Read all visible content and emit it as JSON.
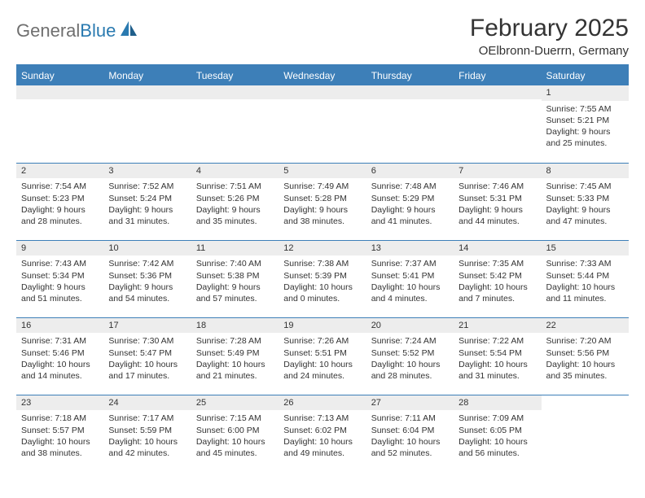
{
  "logo": {
    "text_gray": "General",
    "text_blue": "Blue"
  },
  "title": "February 2025",
  "location": "OElbronn-Duerrn, Germany",
  "header_bg": "#3d7fb8",
  "daynum_bg": "#ededed",
  "weekdays": [
    "Sunday",
    "Monday",
    "Tuesday",
    "Wednesday",
    "Thursday",
    "Friday",
    "Saturday"
  ],
  "weeks": [
    [
      null,
      null,
      null,
      null,
      null,
      null,
      {
        "n": "1",
        "sr": "Sunrise: 7:55 AM",
        "ss": "Sunset: 5:21 PM",
        "dl": "Daylight: 9 hours and 25 minutes."
      }
    ],
    [
      {
        "n": "2",
        "sr": "Sunrise: 7:54 AM",
        "ss": "Sunset: 5:23 PM",
        "dl": "Daylight: 9 hours and 28 minutes."
      },
      {
        "n": "3",
        "sr": "Sunrise: 7:52 AM",
        "ss": "Sunset: 5:24 PM",
        "dl": "Daylight: 9 hours and 31 minutes."
      },
      {
        "n": "4",
        "sr": "Sunrise: 7:51 AM",
        "ss": "Sunset: 5:26 PM",
        "dl": "Daylight: 9 hours and 35 minutes."
      },
      {
        "n": "5",
        "sr": "Sunrise: 7:49 AM",
        "ss": "Sunset: 5:28 PM",
        "dl": "Daylight: 9 hours and 38 minutes."
      },
      {
        "n": "6",
        "sr": "Sunrise: 7:48 AM",
        "ss": "Sunset: 5:29 PM",
        "dl": "Daylight: 9 hours and 41 minutes."
      },
      {
        "n": "7",
        "sr": "Sunrise: 7:46 AM",
        "ss": "Sunset: 5:31 PM",
        "dl": "Daylight: 9 hours and 44 minutes."
      },
      {
        "n": "8",
        "sr": "Sunrise: 7:45 AM",
        "ss": "Sunset: 5:33 PM",
        "dl": "Daylight: 9 hours and 47 minutes."
      }
    ],
    [
      {
        "n": "9",
        "sr": "Sunrise: 7:43 AM",
        "ss": "Sunset: 5:34 PM",
        "dl": "Daylight: 9 hours and 51 minutes."
      },
      {
        "n": "10",
        "sr": "Sunrise: 7:42 AM",
        "ss": "Sunset: 5:36 PM",
        "dl": "Daylight: 9 hours and 54 minutes."
      },
      {
        "n": "11",
        "sr": "Sunrise: 7:40 AM",
        "ss": "Sunset: 5:38 PM",
        "dl": "Daylight: 9 hours and 57 minutes."
      },
      {
        "n": "12",
        "sr": "Sunrise: 7:38 AM",
        "ss": "Sunset: 5:39 PM",
        "dl": "Daylight: 10 hours and 0 minutes."
      },
      {
        "n": "13",
        "sr": "Sunrise: 7:37 AM",
        "ss": "Sunset: 5:41 PM",
        "dl": "Daylight: 10 hours and 4 minutes."
      },
      {
        "n": "14",
        "sr": "Sunrise: 7:35 AM",
        "ss": "Sunset: 5:42 PM",
        "dl": "Daylight: 10 hours and 7 minutes."
      },
      {
        "n": "15",
        "sr": "Sunrise: 7:33 AM",
        "ss": "Sunset: 5:44 PM",
        "dl": "Daylight: 10 hours and 11 minutes."
      }
    ],
    [
      {
        "n": "16",
        "sr": "Sunrise: 7:31 AM",
        "ss": "Sunset: 5:46 PM",
        "dl": "Daylight: 10 hours and 14 minutes."
      },
      {
        "n": "17",
        "sr": "Sunrise: 7:30 AM",
        "ss": "Sunset: 5:47 PM",
        "dl": "Daylight: 10 hours and 17 minutes."
      },
      {
        "n": "18",
        "sr": "Sunrise: 7:28 AM",
        "ss": "Sunset: 5:49 PM",
        "dl": "Daylight: 10 hours and 21 minutes."
      },
      {
        "n": "19",
        "sr": "Sunrise: 7:26 AM",
        "ss": "Sunset: 5:51 PM",
        "dl": "Daylight: 10 hours and 24 minutes."
      },
      {
        "n": "20",
        "sr": "Sunrise: 7:24 AM",
        "ss": "Sunset: 5:52 PM",
        "dl": "Daylight: 10 hours and 28 minutes."
      },
      {
        "n": "21",
        "sr": "Sunrise: 7:22 AM",
        "ss": "Sunset: 5:54 PM",
        "dl": "Daylight: 10 hours and 31 minutes."
      },
      {
        "n": "22",
        "sr": "Sunrise: 7:20 AM",
        "ss": "Sunset: 5:56 PM",
        "dl": "Daylight: 10 hours and 35 minutes."
      }
    ],
    [
      {
        "n": "23",
        "sr": "Sunrise: 7:18 AM",
        "ss": "Sunset: 5:57 PM",
        "dl": "Daylight: 10 hours and 38 minutes."
      },
      {
        "n": "24",
        "sr": "Sunrise: 7:17 AM",
        "ss": "Sunset: 5:59 PM",
        "dl": "Daylight: 10 hours and 42 minutes."
      },
      {
        "n": "25",
        "sr": "Sunrise: 7:15 AM",
        "ss": "Sunset: 6:00 PM",
        "dl": "Daylight: 10 hours and 45 minutes."
      },
      {
        "n": "26",
        "sr": "Sunrise: 7:13 AM",
        "ss": "Sunset: 6:02 PM",
        "dl": "Daylight: 10 hours and 49 minutes."
      },
      {
        "n": "27",
        "sr": "Sunrise: 7:11 AM",
        "ss": "Sunset: 6:04 PM",
        "dl": "Daylight: 10 hours and 52 minutes."
      },
      {
        "n": "28",
        "sr": "Sunrise: 7:09 AM",
        "ss": "Sunset: 6:05 PM",
        "dl": "Daylight: 10 hours and 56 minutes."
      },
      null
    ]
  ]
}
